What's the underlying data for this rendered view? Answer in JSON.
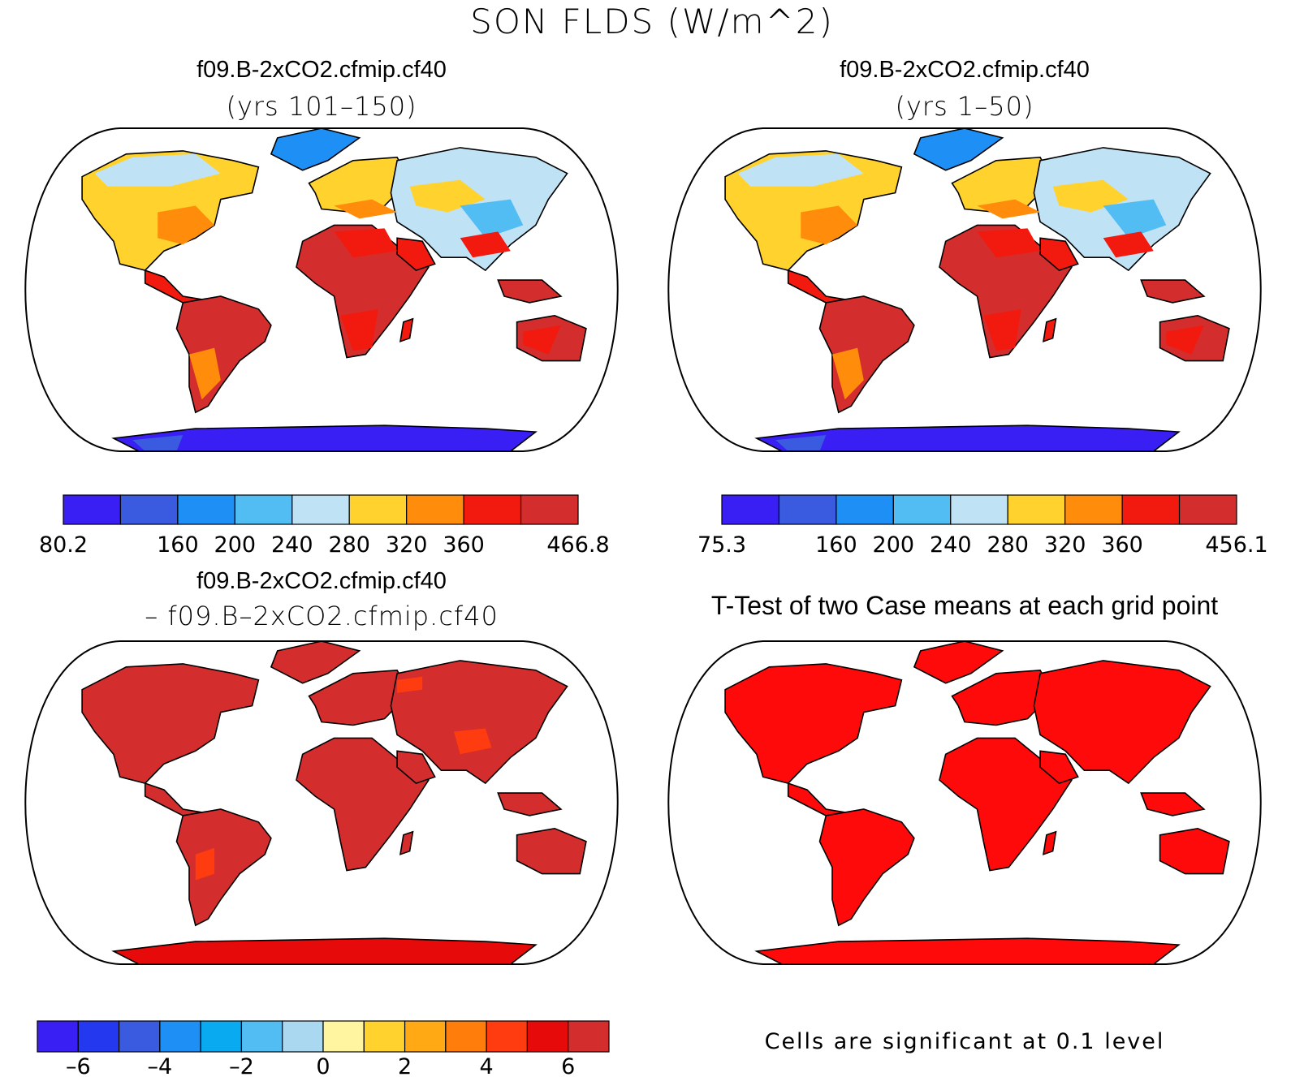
{
  "title": "SON FLDS (W/m^2)",
  "panels": {
    "p1": {
      "title": "f09.B-2xCO2.cfmip.cf40",
      "subtitle": "(yrs 101–150)"
    },
    "p2": {
      "title": "f09.B-2xCO2.cfmip.cf40",
      "subtitle": "(yrs 1–50)"
    },
    "p3": {
      "title": "f09.B-2xCO2.cfmip.cf40",
      "subtitle": "– f09.B–2xCO2.cfmip.cf40"
    },
    "p4": {
      "title": "T-Test of two Case means at each grid point",
      "note": "Cells are significant at 0.1 level"
    }
  },
  "colors": {
    "abs": [
      "#3a1ff5",
      "#3a5be0",
      "#1e90f5",
      "#52bdf2",
      "#bfe2f5",
      "#ffd22e",
      "#ff8c0a",
      "#f21a0f",
      "#d42d2d"
    ],
    "diff": [
      "#3a1ff5",
      "#2438f0",
      "#3a5be0",
      "#1e90f5",
      "#0aaaf0",
      "#52bdf2",
      "#aad8f0",
      "#fff5a0",
      "#ffd22e",
      "#ffaa14",
      "#ff7d0a",
      "#ff3c0f",
      "#e60a0a",
      "#d42d2d"
    ],
    "sig": "#ff0a0a",
    "ocean": "#ffffff"
  },
  "chart_data": [
    {
      "type": "heatmap",
      "title": "f09.B-2xCO2.cfmip.cf40",
      "subtitle": "(yrs 101–150)",
      "units": "W/m^2",
      "colorbar_labels": [
        "80.2",
        "",
        "160",
        "200",
        "240",
        "280",
        "320",
        "360",
        "",
        "466.8"
      ],
      "colorbar_min": 80.2,
      "colorbar_max": 466.8
    },
    {
      "type": "heatmap",
      "title": "f09.B-2xCO2.cfmip.cf40",
      "subtitle": "(yrs 1–50)",
      "units": "W/m^2",
      "colorbar_labels": [
        "75.3",
        "",
        "160",
        "200",
        "240",
        "280",
        "320",
        "360",
        "",
        "456.1"
      ],
      "colorbar_min": 75.3,
      "colorbar_max": 456.1
    },
    {
      "type": "heatmap",
      "title": "f09.B-2xCO2.cfmip.cf40 – f09.B–2xCO2.cfmip.cf40",
      "colorbar_labels": [
        "",
        "–6",
        "",
        "–4",
        "",
        "–2",
        "",
        "0",
        "",
        "2",
        "",
        "4",
        "",
        "6",
        ""
      ]
    },
    {
      "type": "heatmap",
      "title": "T-Test of two Case means at each grid point",
      "note": "Cells are significant at 0.1 level"
    }
  ]
}
